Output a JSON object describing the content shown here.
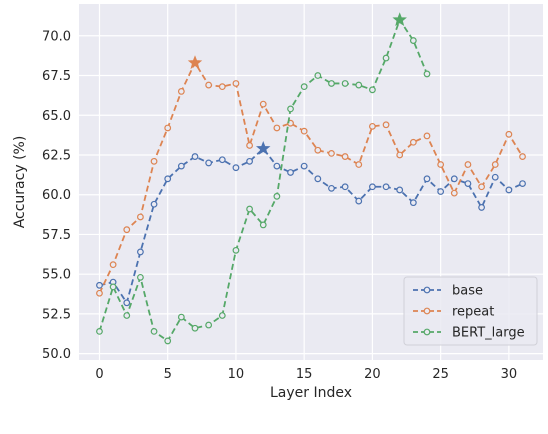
{
  "chart_data": {
    "type": "line",
    "title": "",
    "xlabel": "Layer Index",
    "ylabel": "Accuracy (%)",
    "xlim": [
      -1.5,
      32.5
    ],
    "ylim": [
      49.6,
      72.0
    ],
    "xticks": [
      0,
      5,
      10,
      15,
      20,
      25,
      30
    ],
    "yticks": [
      50.0,
      52.5,
      55.0,
      57.5,
      60.0,
      62.5,
      65.0,
      67.5,
      70.0
    ],
    "ytick_labels": [
      "50.0",
      "52.5",
      "55.0",
      "57.5",
      "60.0",
      "62.5",
      "65.0",
      "67.5",
      "70.0"
    ],
    "grid": true,
    "background": "#eaeaf2",
    "legend_position": "lower-right",
    "series": [
      {
        "name": "base",
        "color": "#4c72b0",
        "best_marker": "star",
        "x": [
          0,
          1,
          2,
          3,
          4,
          5,
          6,
          7,
          8,
          9,
          10,
          11,
          12,
          13,
          14,
          15,
          16,
          17,
          18,
          19,
          20,
          21,
          22,
          23,
          24,
          25,
          26,
          27,
          28,
          29,
          30,
          31
        ],
        "y": [
          54.3,
          54.5,
          53.2,
          56.4,
          59.4,
          61.0,
          61.8,
          62.4,
          62.0,
          62.2,
          61.7,
          62.1,
          62.9,
          61.8,
          61.4,
          61.8,
          61.0,
          60.4,
          60.5,
          59.6,
          60.5,
          60.5,
          60.3,
          59.5,
          61.0,
          60.2,
          61.0,
          60.7,
          59.2,
          61.1,
          60.3,
          60.7
        ]
      },
      {
        "name": "repeat",
        "color": "#dd8452",
        "best_marker": "star",
        "x": [
          0,
          1,
          2,
          3,
          4,
          5,
          6,
          7,
          8,
          9,
          10,
          11,
          12,
          13,
          14,
          15,
          16,
          17,
          18,
          19,
          20,
          21,
          22,
          23,
          24,
          25,
          26,
          27,
          28,
          29,
          30,
          31
        ],
        "y": [
          53.8,
          55.6,
          57.8,
          58.6,
          62.1,
          64.2,
          66.5,
          68.3,
          66.9,
          66.8,
          67.0,
          63.1,
          65.7,
          64.2,
          64.5,
          64.0,
          62.8,
          62.6,
          62.4,
          61.9,
          64.3,
          64.4,
          62.5,
          63.3,
          63.7,
          61.9,
          60.1,
          61.9,
          60.5,
          61.9,
          63.8,
          62.4
        ]
      },
      {
        "name": "BERT_large",
        "color": "#55a868",
        "best_marker": "star",
        "x": [
          0,
          1,
          2,
          3,
          4,
          5,
          6,
          7,
          8,
          9,
          10,
          11,
          12,
          13,
          14,
          15,
          16,
          17,
          18,
          19,
          20,
          21,
          22,
          23,
          24
        ],
        "y": [
          51.4,
          54.2,
          52.4,
          54.8,
          51.4,
          50.8,
          52.3,
          51.6,
          51.8,
          52.4,
          56.5,
          59.1,
          58.1,
          59.9,
          65.4,
          66.8,
          67.5,
          67.0,
          67.0,
          66.9,
          66.6,
          68.6,
          71.0,
          69.7,
          67.6
        ]
      }
    ]
  }
}
